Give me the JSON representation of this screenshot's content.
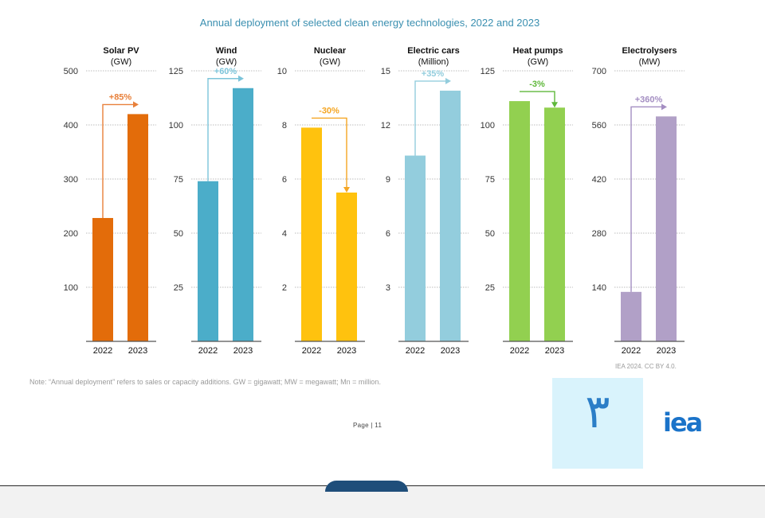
{
  "title": "Annual deployment of selected clean energy technologies, 2022 and 2023",
  "note": "Note: “Annual deployment” refers to sales or capacity additions. GW = gigawatt; MW = megawatt; Mn = million.",
  "source": "IEA 2024. CC BY 4.0.",
  "page_label": "Page | 11",
  "overlay_text": "٣",
  "logo_text": "iea",
  "chart_data": [
    {
      "type": "bar",
      "title": "Solar PV",
      "unit": "(GW)",
      "categories": [
        "2022",
        "2023"
      ],
      "values": [
        228,
        420
      ],
      "ylim": [
        0,
        500
      ],
      "yticks": [
        100,
        200,
        300,
        400,
        500
      ],
      "ytick_labels": [
        "100",
        "200",
        "300",
        "400",
        "500"
      ],
      "change_label": "+85%",
      "color": "#e36c0a",
      "arrow_color": "#e8803a"
    },
    {
      "type": "bar",
      "title": "Wind",
      "unit": "(GW)",
      "categories": [
        "2022",
        "2023"
      ],
      "values": [
        74,
        117
      ],
      "ylim": [
        0,
        125
      ],
      "yticks": [
        25,
        50,
        75,
        100,
        125
      ],
      "ytick_labels": [
        "25",
        "50",
        "75",
        "100",
        "125"
      ],
      "change_label": "+60%",
      "color": "#4badc9",
      "arrow_color": "#7cc4da"
    },
    {
      "type": "bar",
      "title": "Nuclear",
      "unit": "(GW)",
      "categories": [
        "2022",
        "2023"
      ],
      "values": [
        7.9,
        5.5
      ],
      "ylim": [
        0,
        10
      ],
      "yticks": [
        2,
        4,
        6,
        8,
        10
      ],
      "ytick_labels": [
        "2",
        "4",
        "6",
        "8",
        "10"
      ],
      "change_label": "-30%",
      "color": "#ffc20e",
      "arrow_color": "#f5a623"
    },
    {
      "type": "bar",
      "title": "Electric cars",
      "unit": "(Million)",
      "categories": [
        "2022",
        "2023"
      ],
      "values": [
        10.3,
        13.9
      ],
      "ylim": [
        0,
        15
      ],
      "yticks": [
        3,
        6,
        9,
        12,
        15
      ],
      "ytick_labels": [
        "3",
        "6",
        "9",
        "12",
        "15"
      ],
      "change_label": "+35%",
      "color": "#93cddd",
      "arrow_color": "#93cddd"
    },
    {
      "type": "bar",
      "title": "Heat pumps",
      "unit": "(GW)",
      "categories": [
        "2022",
        "2023"
      ],
      "values": [
        111,
        108
      ],
      "ylim": [
        0,
        125
      ],
      "yticks": [
        25,
        50,
        75,
        100,
        125
      ],
      "ytick_labels": [
        "25",
        "50",
        "75",
        "100",
        "125"
      ],
      "change_label": "-3%",
      "color": "#92d050",
      "arrow_color": "#5fb83a"
    },
    {
      "type": "bar",
      "title": "Electrolysers",
      "unit": "(MW)",
      "categories": [
        "2022",
        "2023"
      ],
      "values": [
        128,
        582
      ],
      "ylim": [
        0,
        700
      ],
      "yticks": [
        140,
        280,
        420,
        560,
        700
      ],
      "ytick_labels": [
        "140",
        "280",
        "420",
        "560",
        "700"
      ],
      "change_label": "+360%",
      "color": "#b1a0c7",
      "arrow_color": "#a48ec2"
    }
  ]
}
